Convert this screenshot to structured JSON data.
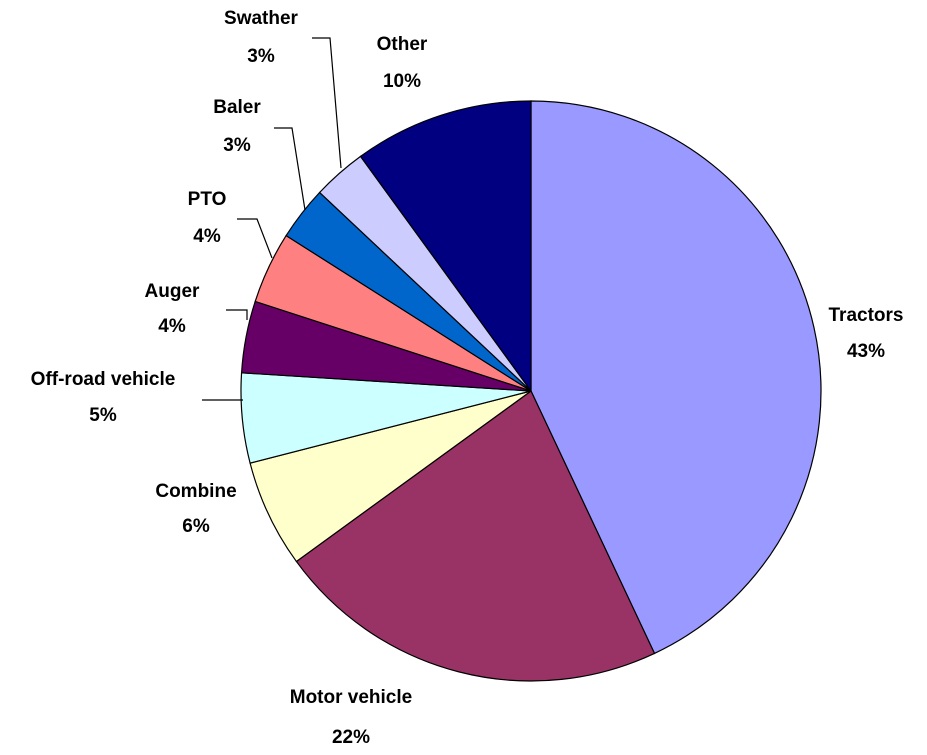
{
  "chart_data": {
    "type": "pie",
    "categories": [
      "Tractors",
      "Motor vehicle",
      "Combine",
      "Off-road vehicle",
      "Auger",
      "PTO",
      "Baler",
      "Swather",
      "Other"
    ],
    "values": [
      43,
      22,
      6,
      5,
      4,
      4,
      3,
      3,
      10
    ],
    "value_labels": [
      "43%",
      "22%",
      "6%",
      "5%",
      "4%",
      "4%",
      "3%",
      "3%",
      "10%"
    ],
    "colors": [
      "#9999ff",
      "#993366",
      "#ffffcc",
      "#ccffff",
      "#660066",
      "#ff8080",
      "#0066cc",
      "#ccccff",
      "#000080"
    ]
  }
}
